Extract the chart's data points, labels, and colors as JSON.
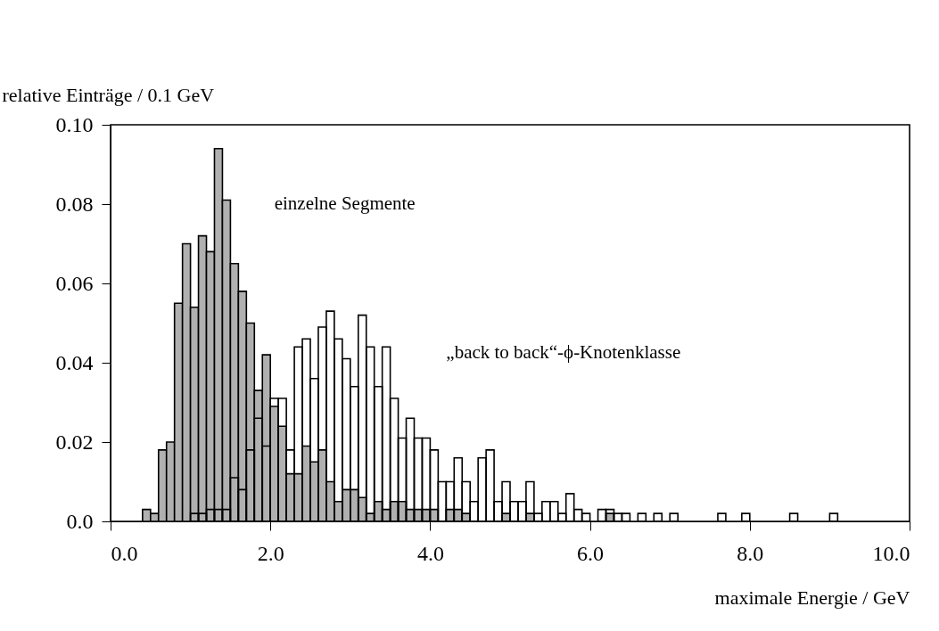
{
  "chart_data": {
    "type": "histogram",
    "xlabel": "maximale Energie / GeV",
    "ylabel": "relative Einträge / 0.1 GeV",
    "bins": [
      0.4,
      0.5,
      0.6,
      0.7,
      0.8,
      0.9,
      1.0,
      1.1,
      1.2,
      1.3,
      1.4,
      1.5,
      1.6,
      1.7,
      1.8,
      1.9,
      2.0,
      2.1,
      2.2,
      2.3,
      2.4,
      2.5,
      2.6,
      2.7,
      2.8,
      2.9,
      3.0,
      3.1,
      3.2,
      3.3,
      3.4,
      3.5,
      3.6,
      3.7,
      3.8,
      3.9,
      4.0,
      4.1,
      4.2,
      4.3,
      4.4,
      4.5,
      4.6,
      4.7,
      4.8,
      4.9,
      5.0,
      5.1,
      5.2,
      5.3,
      5.4,
      5.5,
      5.6,
      5.7,
      5.8,
      5.9,
      6.0,
      6.1,
      6.2,
      6.3,
      6.4,
      6.5,
      6.6,
      6.7,
      6.8,
      6.9,
      7.0,
      7.1,
      7.2,
      7.3,
      7.4,
      7.5,
      7.6,
      7.7,
      7.8,
      7.9,
      8.0,
      8.1,
      8.2,
      8.3,
      8.4,
      8.5,
      8.6,
      8.7,
      8.8,
      8.9,
      9.0,
      9.1
    ],
    "series": [
      {
        "name": "einzelne Segmente",
        "color": "#b0b0b0",
        "values": [
          0.003,
          0.002,
          0.018,
          0.02,
          0.055,
          0.07,
          0.054,
          0.072,
          0.068,
          0.094,
          0.081,
          0.065,
          0.058,
          0.05,
          0.033,
          0.042,
          0.029,
          0.024,
          0.012,
          0.012,
          0.019,
          0.015,
          0.018,
          0.01,
          0.005,
          0.008,
          0.008,
          0.006,
          0.002,
          0.005,
          0.003,
          0.005,
          0.005,
          0.003,
          0.003,
          0.003,
          0.003,
          0,
          0.003,
          0.003,
          0.002,
          0,
          0,
          0,
          0,
          0.002,
          0,
          0,
          0.002,
          0,
          0,
          0,
          0,
          0,
          0,
          0,
          0,
          0,
          0.002,
          0,
          0,
          0,
          0,
          0,
          0,
          0,
          0,
          0,
          0,
          0,
          0,
          0,
          0,
          0,
          0,
          0,
          0,
          0,
          0,
          0,
          0,
          0,
          0,
          0,
          0,
          0,
          0
        ]
      },
      {
        "name": "„back to back“-ϕ-Knotenklasse",
        "color": "#000000",
        "values": [
          0,
          0,
          0,
          0,
          0,
          0,
          0.002,
          0.002,
          0.003,
          0.003,
          0.003,
          0.011,
          0.008,
          0.018,
          0.026,
          0.019,
          0.031,
          0.031,
          0.018,
          0.044,
          0.046,
          0.036,
          0.049,
          0.053,
          0.046,
          0.041,
          0.034,
          0.052,
          0.044,
          0.034,
          0.044,
          0.031,
          0.021,
          0.026,
          0.021,
          0.021,
          0.018,
          0.01,
          0.01,
          0.016,
          0.01,
          0.005,
          0.016,
          0.018,
          0.005,
          0.01,
          0.005,
          0.005,
          0.01,
          0.002,
          0.005,
          0.005,
          0.002,
          0.007,
          0.003,
          0.002,
          0,
          0.003,
          0.003,
          0.002,
          0.002,
          0,
          0.002,
          0,
          0.002,
          0,
          0.002,
          0,
          0,
          0,
          0,
          0,
          0.002,
          0,
          0,
          0.002,
          0,
          0,
          0,
          0,
          0,
          0.002,
          0,
          0,
          0,
          0,
          0.002
        ]
      }
    ],
    "xlim": [
      0,
      10
    ],
    "xticks": [
      {
        "value": 0,
        "label": "0.0"
      },
      {
        "value": 2,
        "label": "2.0"
      },
      {
        "value": 4,
        "label": "4.0"
      },
      {
        "value": 6,
        "label": "6.0"
      },
      {
        "value": 8,
        "label": "8.0"
      },
      {
        "value": 10,
        "label": "10.0"
      }
    ],
    "ylim": [
      0,
      0.1
    ],
    "yticks": [
      {
        "value": 0,
        "label": "0.0"
      },
      {
        "value": 0.02,
        "label": "0.02"
      },
      {
        "value": 0.04,
        "label": "0.04"
      },
      {
        "value": 0.06,
        "label": "0.06"
      },
      {
        "value": 0.08,
        "label": "0.08"
      },
      {
        "value": 0.1,
        "label": "0.10"
      }
    ],
    "grid": false
  }
}
